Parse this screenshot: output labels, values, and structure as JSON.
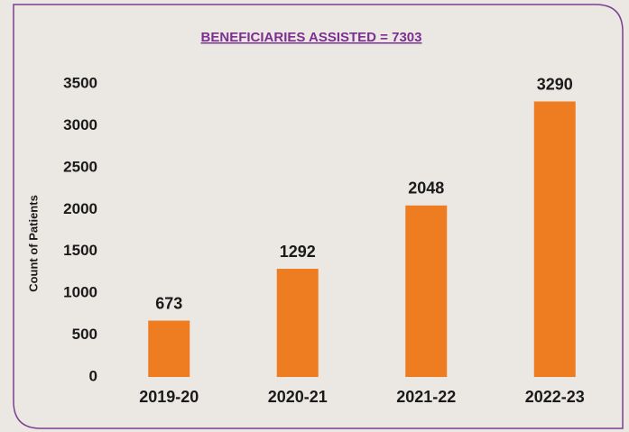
{
  "chart_data": {
    "type": "bar",
    "title": "BENEFICIARIES ASSISTED  = 7303",
    "y_label": "Count of Patients",
    "categories": [
      "2019-20",
      "2020-21",
      "2021-22",
      "2022-23"
    ],
    "values": [
      673,
      1292,
      2048,
      3290
    ],
    "color": "#ee7d22",
    "ylim": [
      0,
      3500
    ],
    "yticks": [
      0,
      500,
      1000,
      1500,
      2000,
      2500,
      3000,
      3500
    ],
    "grid": false
  }
}
